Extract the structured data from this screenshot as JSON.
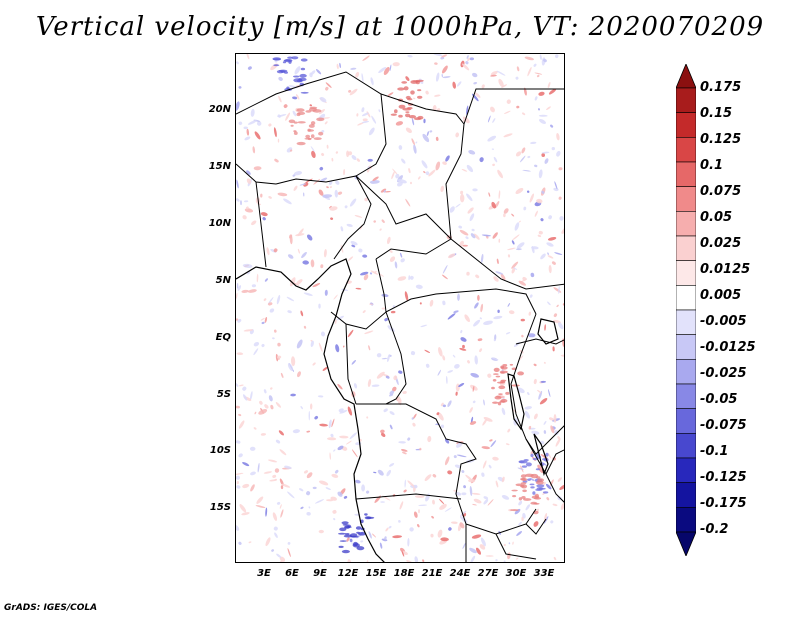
{
  "title": "Vertical velocity [m/s] at 1000hPa, VT: 2020070209",
  "credit": "GrADS: IGES/COLA",
  "map": {
    "lat_labels": [
      "20N",
      "15N",
      "10N",
      "5N",
      "EQ",
      "5S",
      "10S",
      "15S"
    ],
    "lon_labels": [
      "3E",
      "6E",
      "9E",
      "12E",
      "15E",
      "18E",
      "21E",
      "24E",
      "27E",
      "30E",
      "33E"
    ]
  },
  "colorbar": {
    "labels": [
      "0.175",
      "0.15",
      "0.125",
      "0.1",
      "0.075",
      "0.05",
      "0.025",
      "0.0125",
      "0.005",
      "-0.005",
      "-0.0125",
      "-0.025",
      "-0.05",
      "-0.075",
      "-0.1",
      "-0.125",
      "-0.175",
      "-0.2"
    ],
    "colors": [
      "#8b1010",
      "#a81c1c",
      "#c42a2a",
      "#d94646",
      "#e66868",
      "#f08a8a",
      "#f6aeae",
      "#fad0d0",
      "#fde8e8",
      "#ffffff",
      "#e2e2fb",
      "#c8c8f6",
      "#a9a9ef",
      "#8888e6",
      "#6868dc",
      "#4848cf",
      "#2828bc",
      "#1414a0",
      "#0a0a80",
      "#06066a"
    ]
  }
}
